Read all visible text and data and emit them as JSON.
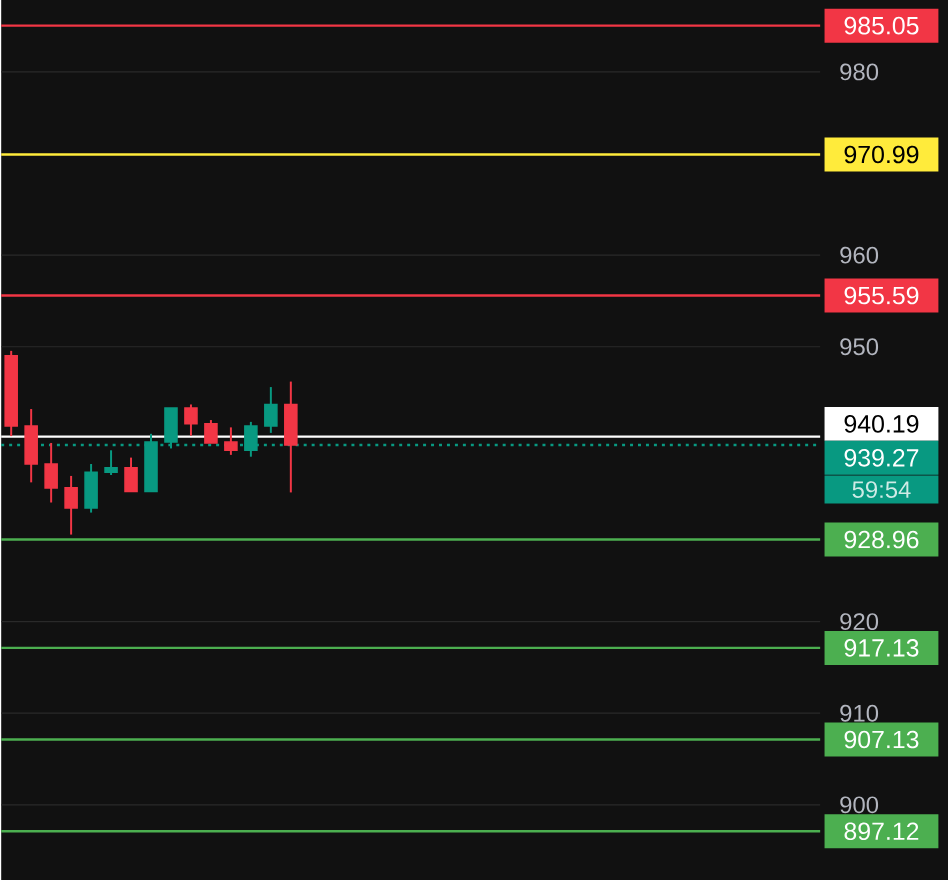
{
  "chart_data": {
    "type": "candlestick",
    "categories": [
      null,
      null,
      null,
      null,
      null,
      null,
      null,
      null,
      null,
      null,
      null,
      null,
      null,
      null,
      null,
      null,
      null,
      null,
      null,
      null,
      null,
      null,
      null,
      null,
      null,
      null,
      null,
      null,
      null,
      null,
      null,
      null,
      null,
      null,
      null,
      null,
      null,
      null,
      null,
      null,
      null
    ],
    "ohlc": [
      [
        949.0,
        949.55,
        940.25,
        941.35
      ],
      [
        941.35,
        943.2,
        935.2,
        937.2
      ],
      [
        937.2,
        939.5,
        933.0,
        934.6
      ],
      [
        934.6,
        935.9,
        929.5,
        932.4
      ],
      [
        932.4,
        937.2,
        931.9,
        936.3
      ],
      [
        936.3,
        938.7,
        936.0,
        936.8
      ],
      [
        936.8,
        937.9,
        934.2,
        934.2
      ],
      [
        934.2,
        940.5,
        934.2,
        939.6
      ],
      [
        939.6,
        943.3,
        938.9,
        943.3
      ],
      [
        943.3,
        943.7,
        940.3,
        941.6
      ],
      [
        941.6,
        942.0,
        939.5,
        939.5
      ],
      [
        939.6,
        941.2,
        938.2,
        938.7
      ],
      [
        938.7,
        941.8,
        938.0,
        941.35
      ],
      [
        941.35,
        945.6,
        940.6,
        943.7
      ],
      [
        943.7,
        946.2,
        934.1,
        939.27
      ],
      null,
      null,
      null,
      null,
      null,
      null,
      null,
      null,
      null,
      null,
      null,
      null,
      null,
      null,
      null,
      null,
      null,
      null,
      null,
      null,
      null,
      null,
      null,
      null,
      null,
      null
    ],
    "colors": [
      "#f23645",
      "#f23645",
      "#f23645",
      "#f23645",
      "#089981",
      "#089981",
      "#f23645",
      "#089981",
      "#089981",
      "#f23645",
      "#f23645",
      "#f23645",
      "#089981",
      "#089981",
      "#f23645",
      null,
      null,
      null,
      null,
      null,
      null,
      null,
      null,
      null,
      null,
      null,
      null,
      null,
      null,
      null,
      null,
      null,
      null,
      null,
      null,
      null,
      null,
      null,
      null,
      null,
      null
    ],
    "ylim": [
      891.7,
      987.85
    ],
    "yticks": [
      900,
      910,
      920,
      950,
      960,
      980
    ],
    "grid": "y",
    "tick_labels": "y",
    "ref_lines": [
      {
        "axis": "y",
        "value": 985.05,
        "label": "985.05",
        "color": "#f23645"
      },
      {
        "axis": "y",
        "value": 970.99,
        "label": "970.99",
        "color": "#ffeb3b"
      },
      {
        "axis": "y",
        "value": 955.59,
        "label": "955.59",
        "color": "#f23645"
      },
      {
        "axis": "y",
        "value": 940.19,
        "label": "940.19",
        "color": "#ffffff"
      },
      {
        "axis": "y",
        "value": 939.27,
        "label": "939.27",
        "color": "#089981",
        "line_style": "dotted"
      },
      {
        "axis": "y",
        "value": 928.96,
        "label": "928.96",
        "color": "#4caf50"
      },
      {
        "axis": "y",
        "value": 917.13,
        "label": "917.13",
        "color": "#4caf50"
      },
      {
        "axis": "y",
        "value": 907.13,
        "label": "907.13",
        "color": "#4caf50"
      },
      {
        "axis": "y",
        "value": 897.12,
        "label": "897.12",
        "color": "#4caf50"
      }
    ],
    "annotations": [
      "59:54"
    ]
  }
}
